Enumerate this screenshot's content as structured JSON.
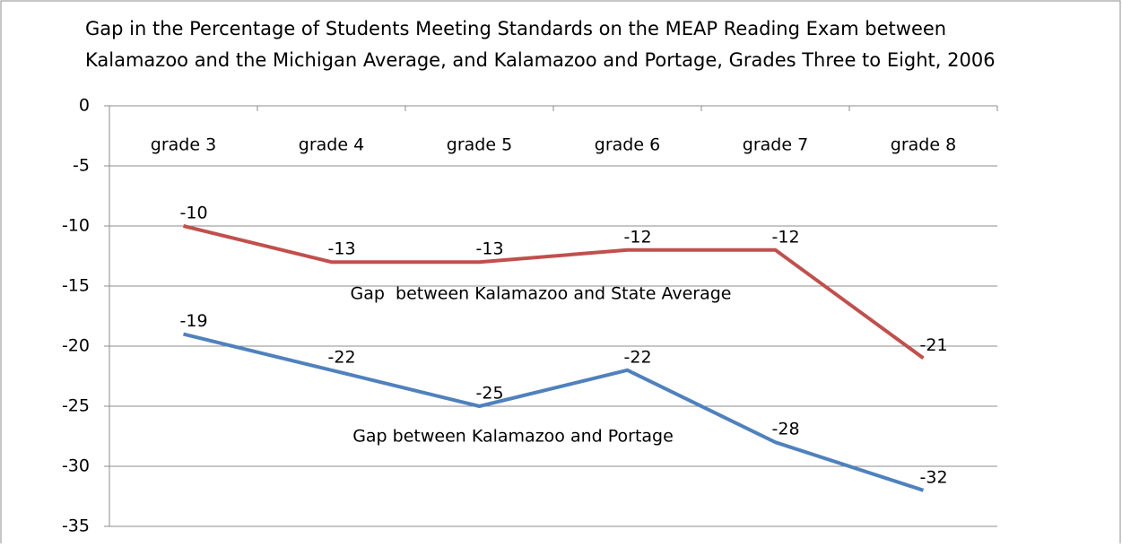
{
  "chart_data": {
    "type": "line",
    "title": [
      "Gap in the Percentage of Students Meeting Standards on the MEAP Reading Exam between",
      "Kalamazoo and the Michigan Average, and Kalamazoo and Portage, Grades Three to Eight, 2006"
    ],
    "categories": [
      "grade 3",
      "grade 4",
      "grade 5",
      "grade 6",
      "grade 7",
      "grade 8"
    ],
    "series": [
      {
        "name": "Gap  between Kalamazoo and State Average",
        "color": "#c0504d",
        "values": [
          -10,
          -13,
          -13,
          -12,
          -12,
          -21
        ]
      },
      {
        "name": "Gap between Kalamazoo and Portage",
        "color": "#4f81bd",
        "values": [
          -19,
          -22,
          -25,
          -22,
          -28,
          -32
        ]
      }
    ],
    "ylim": [
      -35,
      0
    ],
    "yticks": [
      0,
      -5,
      -10,
      -15,
      -20,
      -25,
      -30,
      -35
    ],
    "grid": true
  }
}
